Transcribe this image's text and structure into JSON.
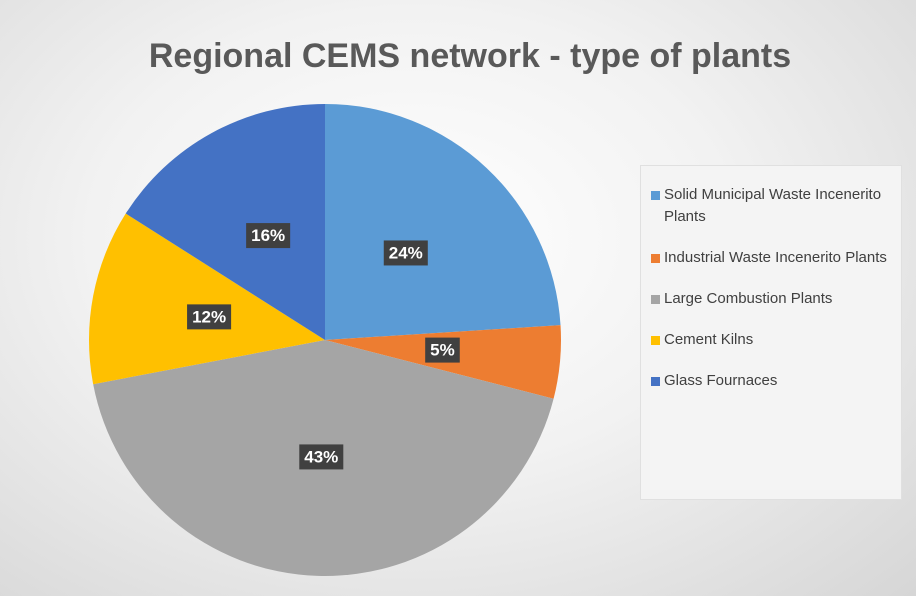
{
  "chart_data": {
    "type": "pie",
    "title": "Regional CEMS network - type of plants",
    "categories": [
      "Solid Municipal Waste Incenerito Plants",
      "Industrial Waste Incenerito Plants",
      "Large Combustion Plants",
      "Cement Kilns",
      "Glass Fournaces"
    ],
    "values": [
      24,
      5,
      43,
      12,
      16
    ],
    "value_labels": [
      "24%",
      "5%",
      "43%",
      "12%",
      "16%"
    ],
    "colors": [
      "#5b9bd5",
      "#ed7d31",
      "#a5a5a5",
      "#ffc000",
      "#4472c4"
    ],
    "legend": "right"
  }
}
